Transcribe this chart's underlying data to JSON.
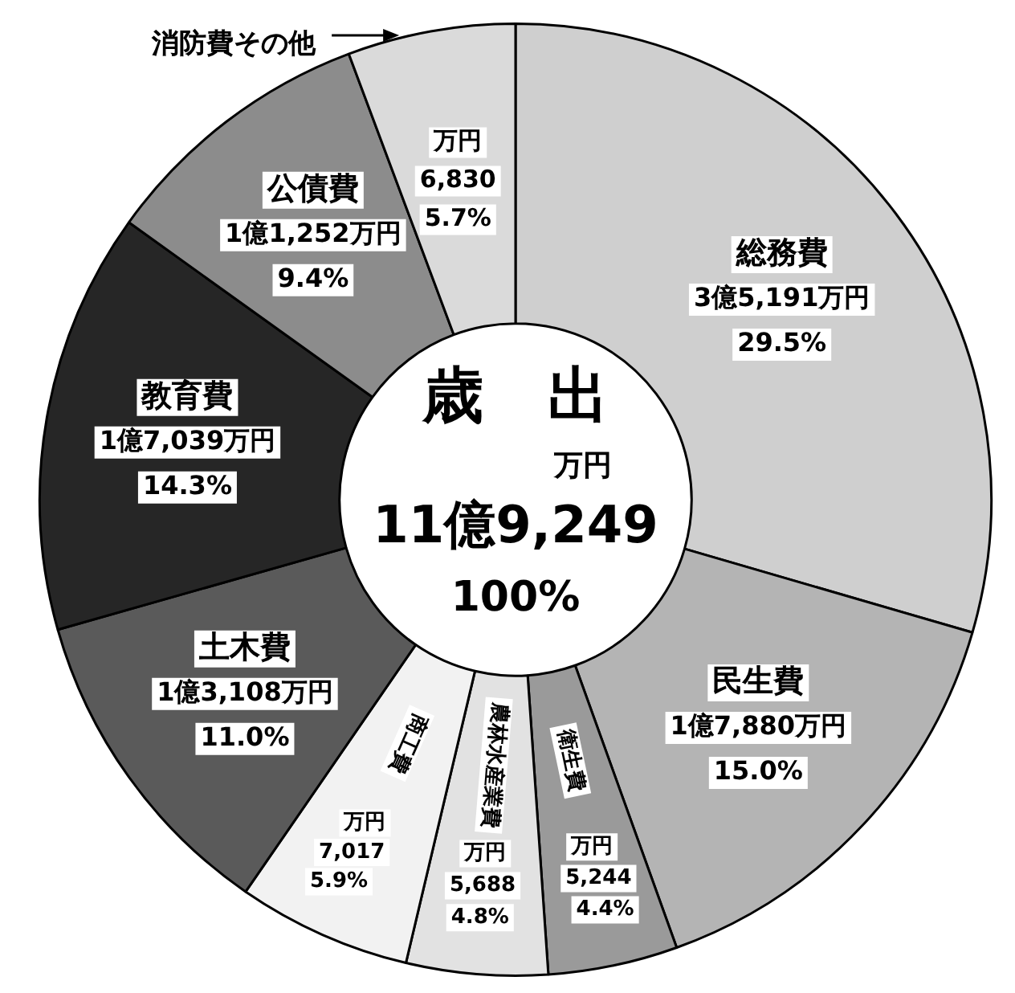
{
  "chart_data": {
    "type": "donut",
    "title": "歳出",
    "categories": [
      "総務費",
      "民生費",
      "衛生費",
      "農林水産業費",
      "商工費",
      "土木費",
      "教育費",
      "公債費",
      "消防費その他"
    ],
    "values": [
      29.5,
      15.0,
      4.4,
      4.8,
      5.9,
      11.0,
      14.3,
      9.4,
      5.7
    ],
    "value_labels": [
      "3億5,191万円\n29.5%",
      "1億7,880万円\n15.0%",
      "万円\n5,244\n4.4%",
      "万円\n5,688\n4.8%",
      "万円\n7,017\n5.9%",
      "1億3,108万円\n11.0%",
      "1億7,039万円\n14.3%",
      "1億1,252万円\n9.4%",
      "万円\n6,830\n5.7%"
    ],
    "colors": [
      "#cfcfcf",
      "#b4b4b4",
      "#9a9a9a",
      "#e2e2e2",
      "#f2f2f2",
      "#5a5a5a",
      "#262626",
      "#8c8c8c",
      "#dadada"
    ],
    "annotations": [
      "万円",
      "11億9,249",
      "100%"
    ],
    "legend": false
  }
}
